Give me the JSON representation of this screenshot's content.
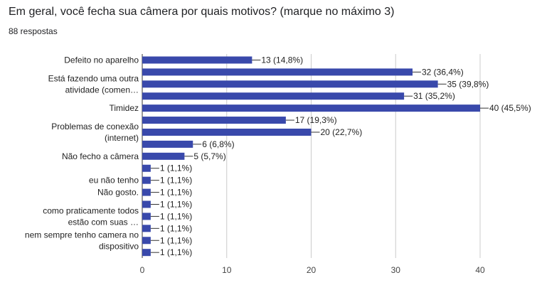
{
  "header": {
    "title": "Em geral, você fecha sua câmera por quais motivos? (marque no máximo 3)",
    "responses": "88 respostas"
  },
  "chart_data": {
    "type": "bar",
    "orientation": "horizontal",
    "bar_color": "#3949ab",
    "xlim": [
      0,
      40
    ],
    "xticks": [
      0,
      10,
      20,
      30,
      40
    ],
    "grid": true,
    "category_labels": [
      {
        "lines": [
          "Defeito no aparelho"
        ],
        "row": 0
      },
      {
        "lines": [
          "Está fazendo uma outra",
          "atividade (comen…"
        ],
        "row": 2
      },
      {
        "lines": [
          "Timidez"
        ],
        "row": 4
      },
      {
        "lines": [
          "Problemas de conexão",
          "(internet)"
        ],
        "row": 6
      },
      {
        "lines": [
          "Não fecho a câmera"
        ],
        "row": 8
      },
      {
        "lines": [
          "eu não tenho"
        ],
        "row": 10
      },
      {
        "lines": [
          "Não gosto."
        ],
        "row": 11
      },
      {
        "lines": [
          "como praticamente todos",
          "estão com suas …"
        ],
        "row": 13
      },
      {
        "lines": [
          "nem sempre tenho camera no",
          "dispositivo"
        ],
        "row": 15
      }
    ],
    "values": [
      13,
      32,
      35,
      31,
      40,
      17,
      20,
      6,
      5,
      1,
      1,
      1,
      1,
      1,
      1,
      1,
      1
    ],
    "labels": [
      "13 (14,8%)",
      "32 (36,4%)",
      "35 (39,8%)",
      "31 (35,2%)",
      "40 (45,5%)",
      "17 (19,3%)",
      "20 (22,7%)",
      "6 (6,8%)",
      "5 (5,7%)",
      "1 (1,1%)",
      "1 (1,1%)",
      "1 (1,1%)",
      "1 (1,1%)",
      "1 (1,1%)",
      "1 (1,1%)",
      "1 (1,1%)",
      "1 (1,1%)"
    ]
  }
}
